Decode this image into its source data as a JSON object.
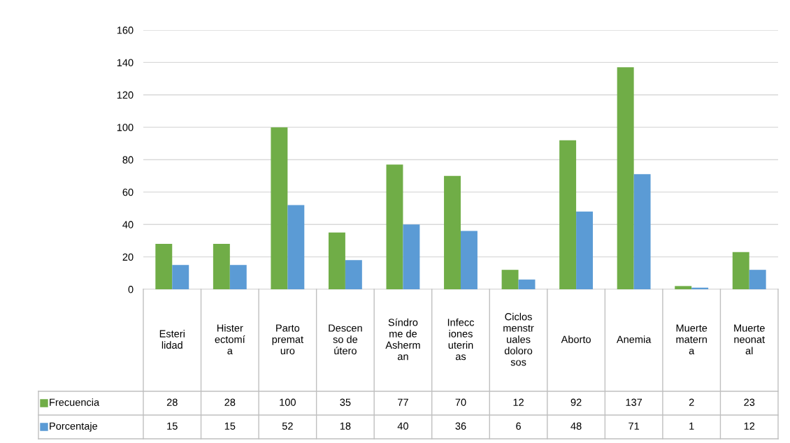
{
  "chart_data": {
    "type": "bar",
    "categories": [
      "Esterilidad",
      "Histerectomía",
      "Parto prematuro",
      "Descenso de útero",
      "Síndrome de Asherman",
      "Infecciones uterinas",
      "Ciclos menstruales dolorosos",
      "Aborto",
      "Anemia",
      "Muerte materna",
      "Muerte neonatal"
    ],
    "series": [
      {
        "name": "Frecuencia",
        "color": "#70ad47",
        "values": [
          28,
          28,
          100,
          35,
          77,
          70,
          12,
          92,
          137,
          2,
          23
        ]
      },
      {
        "name": "Porcentaje",
        "color": "#5b9bd5",
        "values": [
          15,
          15,
          52,
          18,
          40,
          36,
          6,
          48,
          71,
          1,
          12
        ]
      }
    ],
    "ylim": [
      0,
      160
    ],
    "yticks": [
      0,
      20,
      40,
      60,
      80,
      100,
      120,
      140,
      160
    ],
    "grid": "y",
    "data_labels": true,
    "legend": "bottom left"
  }
}
